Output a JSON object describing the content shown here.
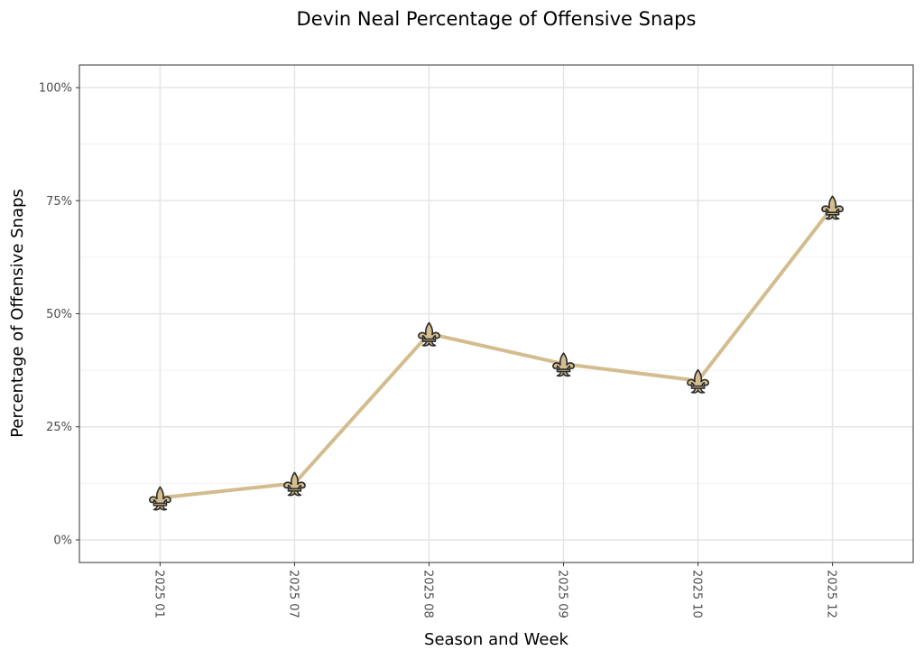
{
  "chart_data": {
    "type": "line",
    "title": "Devin Neal Percentage of Offensive Snaps",
    "xlabel": "Season and Week",
    "ylabel": "Percentage of Offensive Snaps",
    "categories": [
      "2025 01",
      "2025 07",
      "2025 08",
      "2025 09",
      "2025 10",
      "2025 12"
    ],
    "series": [
      {
        "name": "Devin Neal",
        "values": [
          9.3,
          12.5,
          45.6,
          38.9,
          35.2,
          73.6
        ]
      }
    ],
    "ylim": [
      -5,
      105
    ],
    "yticks": [
      0,
      25,
      50,
      75,
      100
    ],
    "ytick_labels": [
      "0%",
      "25%",
      "50%",
      "75%",
      "100%"
    ],
    "grid": true,
    "marker": "fleur-de-lis",
    "colors": {
      "line": "#D3BC8D",
      "marker_fill": "#D3BC8D",
      "marker_stroke": "#2b2b2b",
      "grid_major": "#e5e5e5",
      "grid_minor": "#f2f2f2",
      "panel_border": "#333333",
      "tick_text": "#4d4d4d"
    }
  }
}
